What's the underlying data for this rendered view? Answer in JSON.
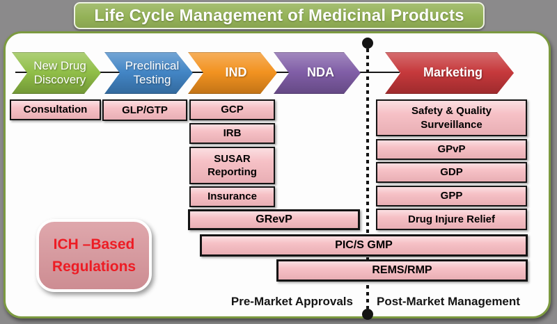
{
  "title": "Life Cycle Management of Medicinal Products",
  "stages": {
    "discovery": "New Drug\nDiscovery",
    "preclinical": "Preclinical\nTesting",
    "ind": "IND",
    "nda": "NDA",
    "marketing": "Marketing"
  },
  "regulation_boxes": {
    "consultation": "Consultation",
    "glp_gtp": "GLP/GTP",
    "gcp": "GCP",
    "irb": "IRB",
    "susar": "SUSAR\nReporting",
    "insurance": "Insurance",
    "grevp": "GRevP",
    "pics_gmp": "PIC/S GMP",
    "rems_rmp": "REMS/RMP",
    "safety_quality": "Safety & Quality\nSurveillance",
    "gpvp": "GPvP",
    "gdp": "GDP",
    "gpp": "GPP",
    "drug_injure_relief": "Drug Injure Relief"
  },
  "ich_note": {
    "line1": "ICH –Based",
    "line2": "Regulations"
  },
  "footer": {
    "pre_market": "Pre-Market Approvals",
    "post_market": "Post-Market Management"
  },
  "colors": {
    "background": "#8b8a8b",
    "title_green": "#94b257",
    "panel_border": "#7c9a40",
    "stage_discovery": "#8ebd44",
    "stage_preclinical": "#3f83c4",
    "stage_ind": "#f2901c",
    "stage_nda": "#7e5ba5",
    "stage_marketing": "#c53538",
    "box_pink": "#f5b8be",
    "ich_fill": "#d8949a",
    "ich_text": "#ed1c24"
  }
}
